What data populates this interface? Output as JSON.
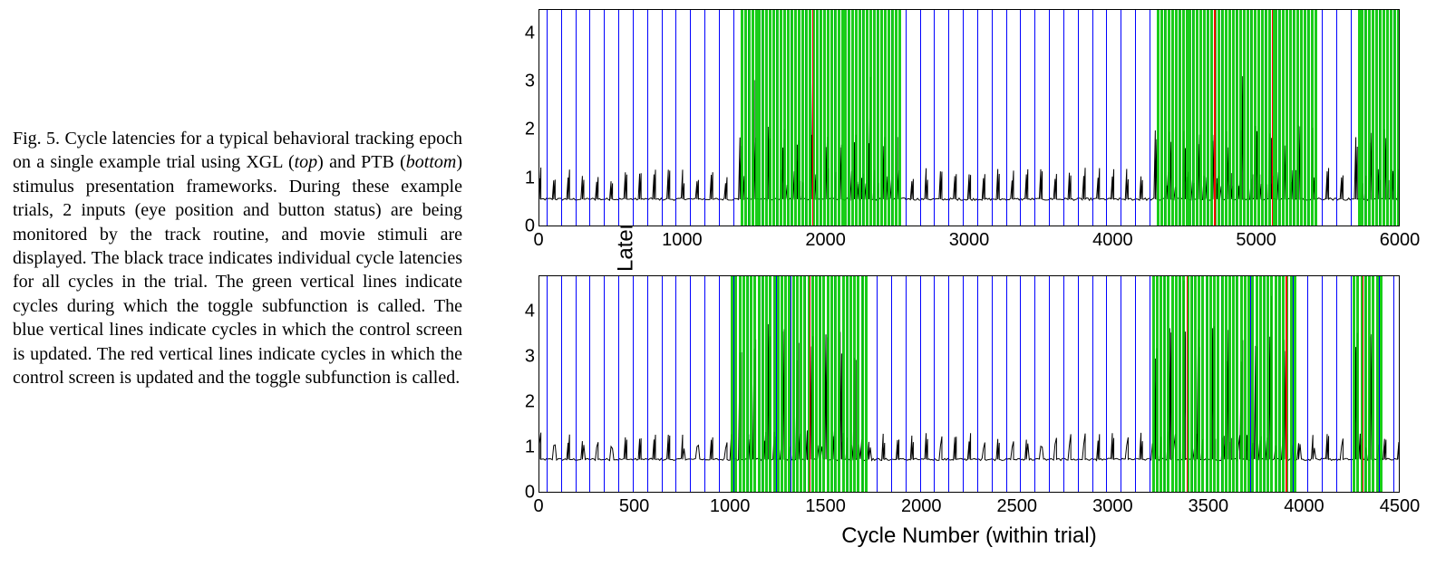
{
  "caption": {
    "label": "Fig. 5.",
    "text_before_top": " Cycle latencies for a typical behavioral tracking epoch on a single example trial using XGL (",
    "top_word": "top",
    "text_mid": ") and PTB (",
    "bottom_word": "bottom",
    "text_after_bottom": ") stimulus presentation frameworks. During these example trials, 2 inputs (eye position and button status) are being monitored by the track routine, and movie stimuli are displayed. The black trace indicates individual cycle latencies for all cycles in the trial. The green vertical lines indicate cycles during which the toggle subfunction is called. The blue vertical lines indicate cycles in which the control screen is updated. The red vertical lines indicate cycles in which the control screen is updated and the toggle subfunction is called.",
    "font_size_pt": 15
  },
  "axes": {
    "ylabel": "Individual Cycle Latency (ms)",
    "xlabel": "Cycle Number (within trial)",
    "label_fontsize": 24,
    "tick_fontsize": 20,
    "axis_color": "#000000",
    "bg_color": "#ffffff"
  },
  "colors": {
    "trace": "#000000",
    "blue_line": "#0000ff",
    "green_line": "#00c800",
    "red_line": "#ff0000"
  },
  "top_chart": {
    "framework": "XGL",
    "xlim": [
      0,
      6000
    ],
    "ylim": [
      0,
      4.5
    ],
    "xticks": [
      0,
      1000,
      2000,
      3000,
      4000,
      5000,
      6000
    ],
    "yticks": [
      0,
      1,
      2,
      3,
      4
    ],
    "baseline_ms": 0.55,
    "blue_line_spacing": 100,
    "green_bands": [
      [
        1400,
        2500
      ],
      [
        4300,
        5400
      ],
      [
        5700,
        5980
      ]
    ],
    "green_line_gap": 25,
    "red_lines": [
      1900,
      4700,
      5100
    ],
    "spike_high_ms": 1.9,
    "spike_low_ms": 1.1,
    "occasional_spike_ms": 3.3
  },
  "bottom_chart": {
    "framework": "PTB",
    "xlim": [
      0,
      4500
    ],
    "ylim": [
      0,
      4.8
    ],
    "xticks": [
      0,
      500,
      1000,
      1500,
      2000,
      2500,
      3000,
      3500,
      4000,
      4500
    ],
    "yticks": [
      0,
      1,
      2,
      3,
      4
    ],
    "baseline_ms": 0.72,
    "blue_line_spacing": 75,
    "green_bands": [
      [
        1000,
        1700
      ],
      [
        3200,
        3950
      ],
      [
        4250,
        4400
      ]
    ],
    "green_line_gap": 20,
    "red_lines": [
      1410,
      3380,
      3900,
      4300
    ],
    "spike_high_ms": 3.4,
    "spike_low_ms": 1.2,
    "occasional_spike_ms": 4.5
  }
}
